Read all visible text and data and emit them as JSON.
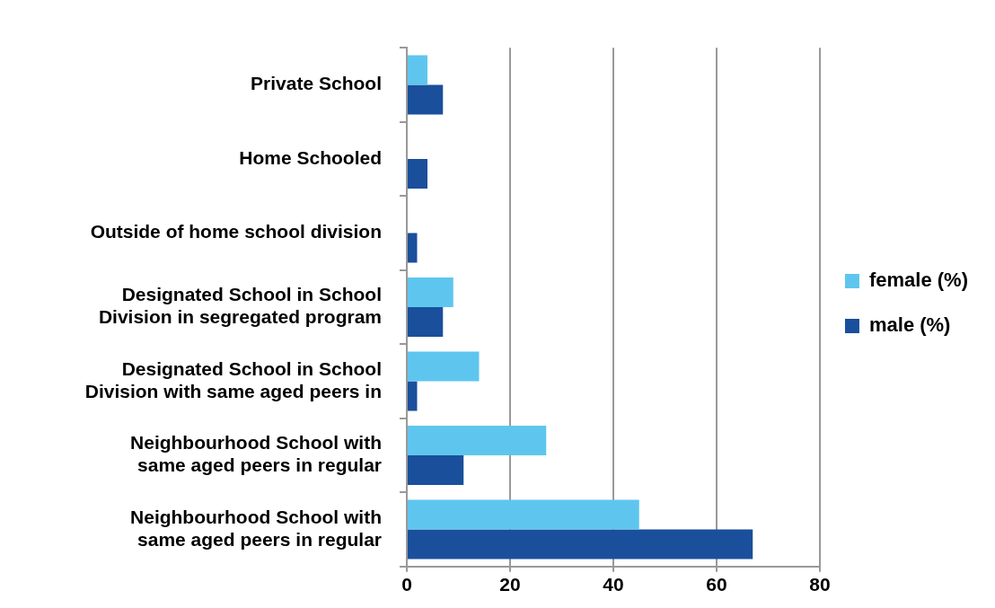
{
  "chart_data": {
    "type": "bar",
    "orientation": "horizontal",
    "categories": [
      "Private School",
      "Home Schooled",
      "Outside of home school division",
      "Designated School in School Division in segregated program",
      "Designated School in School Division with same aged peers in",
      "Neighbourhood School with same aged peers in regular",
      "Neighbourhood School with same aged peers in regular"
    ],
    "series": [
      {
        "name": "female (%)",
        "color": "#5ec6ee",
        "values": [
          4,
          0,
          0,
          9,
          14,
          27,
          45
        ]
      },
      {
        "name": "male (%)",
        "color": "#1a4f9c",
        "values": [
          7,
          4,
          2,
          7,
          2,
          11,
          67
        ]
      }
    ],
    "xlim": [
      0,
      80
    ],
    "xticks": [
      0,
      20,
      40,
      60,
      80
    ],
    "grid": "x",
    "legend": "right"
  }
}
